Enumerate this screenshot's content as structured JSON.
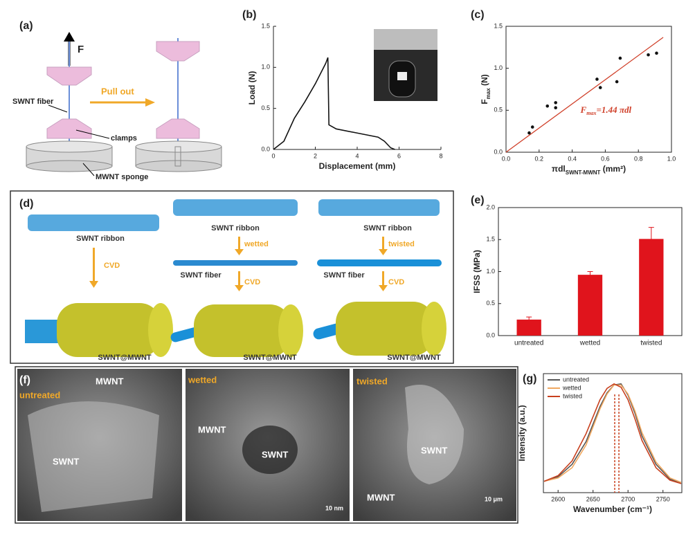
{
  "panel_a": {
    "label": "(a)",
    "texts": [
      "F",
      "SWNT fiber",
      "Pull out",
      "clamps",
      "MWNT sponge"
    ]
  },
  "panel_d": {
    "label": "(d)",
    "texts": [
      "SWNT ribbon",
      "CVD",
      "SWNT@MWNT",
      "SWNT ribbon",
      "wetted",
      "SWNT fiber",
      "CVD",
      "SWNT@MWNT",
      "SWNT ribbon",
      "twisted",
      "SWNT fiber",
      "CVD",
      "SWNT@MWNT"
    ]
  },
  "panel_f": {
    "label": "(f)",
    "texts": [
      "MWNT",
      "untreated",
      "SWNT",
      "wetted",
      "MWNT",
      "SWNT",
      "10 nm",
      "twisted",
      "SWNT",
      "MWNT",
      "10 μm"
    ]
  },
  "chart_data": [
    {
      "type": "line",
      "panel_label": "(b)",
      "xlabel": "Displacement (mm)",
      "ylabel": "Load (N)",
      "x": [
        0,
        0.5,
        1,
        1.5,
        2,
        2.3,
        2.5,
        2.6,
        2.65,
        3,
        4,
        5,
        5.3,
        5.6,
        5.8
      ],
      "values": [
        0,
        0.1,
        0.38,
        0.58,
        0.8,
        0.95,
        1.05,
        1.12,
        0.3,
        0.25,
        0.2,
        0.15,
        0.1,
        0.02,
        0
      ],
      "color": "#111111",
      "xlim": [
        0,
        8
      ],
      "xticks": [
        0,
        2,
        4,
        6,
        8
      ],
      "ylim": [
        0,
        1.5
      ],
      "yticks": [
        {
          "value": 0,
          "label": "0.0"
        },
        {
          "value": 0.5,
          "label": "0.5"
        },
        {
          "value": 1,
          "label": "1.0"
        },
        {
          "value": 1.5,
          "label": "1.5"
        }
      ]
    },
    {
      "type": "scatter",
      "panel_label": "(c)",
      "xlabel": {
        "text": "πdl",
        "sub": "SWNT-MWNT",
        "after": " (mm²)"
      },
      "ylabel": {
        "text": "F",
        "sub": "max",
        "after": " (N)"
      },
      "x": [
        0.14,
        0.16,
        0.25,
        0.3,
        0.3,
        0.55,
        0.57,
        0.67,
        0.69,
        0.86,
        0.91
      ],
      "values": [
        0.23,
        0.3,
        0.55,
        0.59,
        0.53,
        0.87,
        0.77,
        0.84,
        1.12,
        1.16,
        1.18
      ],
      "color": "#111111",
      "fit": {
        "x": [
          0,
          0.95
        ],
        "values": [
          0,
          1.368
        ],
        "color": "#d0402a"
      },
      "annotation": {
        "text": "F",
        "sub": "max",
        "after": "=1.44 πdl"
      },
      "xlim": [
        0,
        1
      ],
      "xticks": [
        {
          "value": 0,
          "label": "0.0"
        },
        {
          "value": 0.2,
          "label": "0.2"
        },
        {
          "value": 0.4,
          "label": "0.4"
        },
        {
          "value": 0.6,
          "label": "0.6"
        },
        {
          "value": 0.8,
          "label": "0.8"
        },
        {
          "value": 1,
          "label": "1.0"
        }
      ],
      "ylim": [
        0,
        1.5
      ],
      "yticks": [
        {
          "value": 0,
          "label": "0.0"
        },
        {
          "value": 0.5,
          "label": "0.5"
        },
        {
          "value": 1,
          "label": "1.0"
        },
        {
          "value": 1.5,
          "label": "1.5"
        }
      ]
    },
    {
      "type": "bar",
      "panel_label": "(e)",
      "ylabel": "IFSS (MPa)",
      "categories": [
        "untreated",
        "wetted",
        "twisted"
      ],
      "values": [
        0.25,
        0.95,
        1.51
      ],
      "errors": [
        0.04,
        0.05,
        0.18
      ],
      "color": "#e0141c",
      "ylim": [
        0,
        2
      ],
      "yticks": [
        {
          "value": 0,
          "label": "0.0"
        },
        {
          "value": 0.5,
          "label": "0.5"
        },
        {
          "value": 1,
          "label": "1.0"
        },
        {
          "value": 1.5,
          "label": "1.5"
        },
        {
          "value": 2,
          "label": "2.0"
        }
      ]
    },
    {
      "type": "line",
      "panel_label": "(g)",
      "xlabel": "Wavenumber (cm⁻¹)",
      "ylabel": "Intensity (a.u.)",
      "x": [
        2580,
        2600,
        2620,
        2640,
        2660,
        2670,
        2680,
        2690,
        2700,
        2710,
        2720,
        2740,
        2760,
        2776
      ],
      "series": [
        {
          "name": "untreated",
          "color": "#555555",
          "values": [
            0.1,
            0.14,
            0.25,
            0.45,
            0.76,
            0.88,
            0.95,
            0.96,
            0.86,
            0.7,
            0.5,
            0.25,
            0.12,
            0.08
          ]
        },
        {
          "name": "wetted",
          "color": "#f0a860",
          "values": [
            0.1,
            0.13,
            0.22,
            0.42,
            0.74,
            0.87,
            0.95,
            0.95,
            0.87,
            0.72,
            0.53,
            0.27,
            0.13,
            0.09
          ]
        },
        {
          "name": "twisted",
          "color": "#c8401e",
          "values": [
            0.1,
            0.15,
            0.28,
            0.52,
            0.82,
            0.92,
            0.96,
            0.93,
            0.82,
            0.65,
            0.46,
            0.22,
            0.11,
            0.08
          ]
        }
      ],
      "peak_markers": [
        2681,
        2687
      ],
      "legend": "upper left",
      "xlim": [
        2579,
        2777
      ],
      "xticks": [
        2600,
        2650,
        2700,
        2750
      ],
      "ylim": [
        0,
        1.05
      ]
    }
  ]
}
